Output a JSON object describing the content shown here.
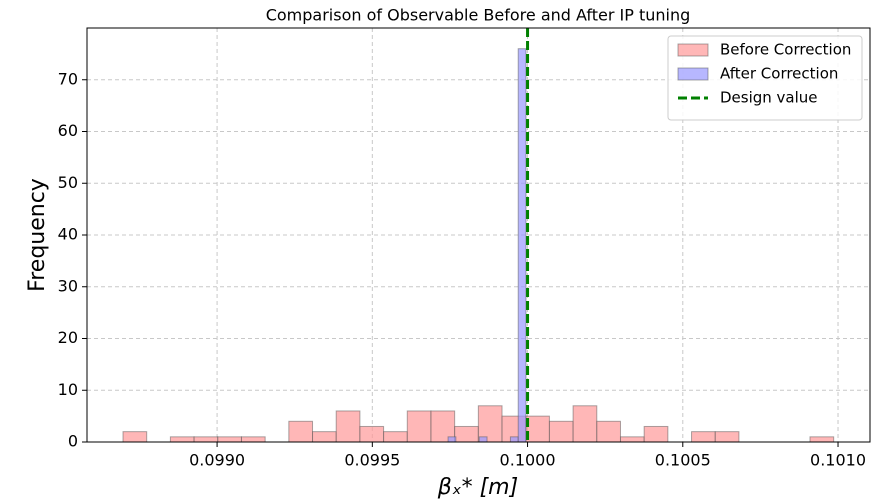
{
  "chart_data": {
    "type": "histogram",
    "title": "Comparison of Observable Before and After IP tuning",
    "xlabel": "βₓ* [m]",
    "ylabel": "Frequency",
    "xlim": [
      0.098581,
      0.101103
    ],
    "ylim": [
      0,
      80
    ],
    "xticks": [
      {
        "value": 0.099,
        "label": "0.0990"
      },
      0.0995,
      {
        "value": 0.1,
        "label": "0.1000"
      },
      0.1005,
      {
        "value": 0.101,
        "label": "0.1010"
      }
    ],
    "yticks": [
      0,
      10,
      20,
      30,
      40,
      50,
      60,
      70
    ],
    "grid": true,
    "legend": "upper right",
    "series": [
      {
        "name": "Before Correction",
        "color": "#ff9999",
        "bins": [
          0.098697,
          0.0987733,
          0.0988496,
          0.0989259,
          0.0990022,
          0.0990785,
          0.0991548,
          0.0992311,
          0.0993074,
          0.0993837,
          0.09946,
          0.0995363,
          0.0996126,
          0.0996889,
          0.0997652,
          0.0998415,
          0.0999178,
          0.0999941,
          0.1000704,
          0.1001467,
          0.100223,
          0.1002993,
          0.1003756,
          0.1004519,
          0.1005282,
          0.1006045,
          0.1006808,
          0.1007571,
          0.1008334,
          0.1009097,
          0.100986
        ],
        "values": [
          2,
          0,
          1,
          1,
          1,
          1,
          0,
          4,
          2,
          6,
          3,
          2,
          6,
          6,
          3,
          7,
          5,
          5,
          4,
          7,
          4,
          1,
          3,
          0,
          2,
          2,
          0,
          0,
          0,
          1
        ]
      },
      {
        "name": "After Correction",
        "color": "#9999ff",
        "bins": [
          0.099744,
          0.0997691,
          0.0997942,
          0.0998193,
          0.0998444,
          0.0998695,
          0.0998946,
          0.0999197,
          0.0999448,
          0.0999699,
          0.099995
        ],
        "values": [
          1,
          0,
          0,
          0,
          1,
          0,
          0,
          0,
          1,
          76
        ]
      }
    ],
    "reference_line": {
      "name": "Design value",
      "x": 0.1,
      "color": "#008000"
    }
  }
}
